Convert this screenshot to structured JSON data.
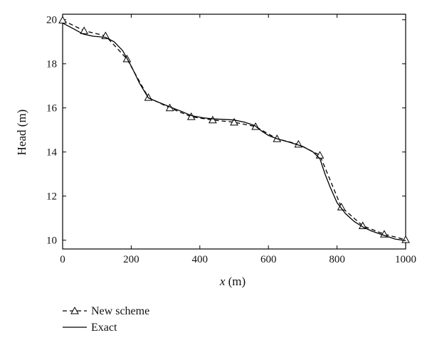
{
  "chart_data": {
    "type": "line",
    "xlabel": "x (m)",
    "xlabel_var": "x",
    "xlabel_unit": " (m)",
    "ylabel": "Head (m)",
    "xlim": [
      0,
      1000
    ],
    "ylim": [
      9.6,
      20.25
    ],
    "xticks": [
      0,
      200,
      400,
      600,
      800,
      1000
    ],
    "yticks": [
      10,
      12,
      14,
      16,
      18,
      20
    ],
    "grid": false,
    "legend_position": "bottom-left, below plot",
    "series": [
      {
        "name": "New scheme",
        "style": "dashed",
        "marker": "triangle",
        "color": "#000000",
        "x": [
          0,
          62.5,
          125,
          187.5,
          250,
          312.5,
          375,
          437.5,
          500,
          562.5,
          625,
          687.5,
          750,
          812.5,
          875,
          937.5,
          1000
        ],
        "y": [
          19.98,
          19.5,
          19.27,
          18.22,
          16.47,
          16.0,
          15.6,
          15.45,
          15.35,
          15.15,
          14.6,
          14.35,
          13.85,
          11.5,
          10.65,
          10.27,
          10.02
        ]
      },
      {
        "name": "Exact",
        "style": "solid",
        "marker": "none",
        "color": "#000000",
        "x": [
          0,
          30,
          60,
          90,
          125,
          150,
          175,
          200,
          225,
          250,
          280,
          312,
          345,
          375,
          410,
          440,
          470,
          500,
          530,
          560,
          580,
          600,
          625,
          660,
          700,
          730,
          750,
          765,
          780,
          800,
          825,
          850,
          875,
          900,
          940,
          970,
          1000
        ],
        "y": [
          19.85,
          19.6,
          19.35,
          19.25,
          19.2,
          19.0,
          18.6,
          17.9,
          17.1,
          16.45,
          16.25,
          16.05,
          15.85,
          15.65,
          15.55,
          15.5,
          15.48,
          15.45,
          15.35,
          15.2,
          14.95,
          14.75,
          14.6,
          14.45,
          14.25,
          14.0,
          13.7,
          13.0,
          12.4,
          11.7,
          11.2,
          10.85,
          10.6,
          10.42,
          10.2,
          10.05,
          9.98
        ]
      }
    ]
  }
}
